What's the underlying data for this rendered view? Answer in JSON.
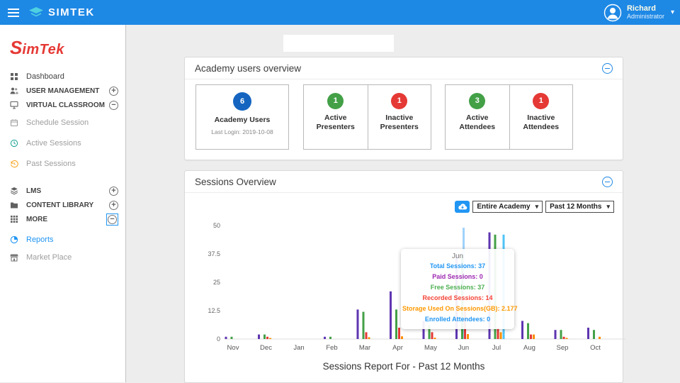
{
  "topbar": {
    "brand": "SIMTEK",
    "user_name": "Richard",
    "user_role": "Administrator"
  },
  "sidebar": {
    "logo_first": "S",
    "logo_rest": "imTek",
    "items": [
      {
        "label": "Dashboard"
      },
      {
        "label": "USER MANAGEMENT"
      },
      {
        "label": "VIRTUAL CLASSROOM"
      },
      {
        "label": "Schedule Session"
      },
      {
        "label": "Active Sessions"
      },
      {
        "label": "Past Sessions"
      },
      {
        "label": "LMS"
      },
      {
        "label": "CONTENT LIBRARY"
      },
      {
        "label": "MORE"
      },
      {
        "label": "Reports"
      },
      {
        "label": "Market Place"
      }
    ]
  },
  "academy_card": {
    "title": "Academy users overview",
    "stats": [
      {
        "value": "6",
        "color": "#1565c0",
        "label": "Academy Users",
        "sub": "Last Login: 2019-10-08"
      },
      {
        "value": "1",
        "color": "#43a047",
        "label": "Active Presenters"
      },
      {
        "value": "1",
        "color": "#e53935",
        "label": "Inactive Presenters"
      },
      {
        "value": "3",
        "color": "#43a047",
        "label": "Active Attendees"
      },
      {
        "value": "1",
        "color": "#e53935",
        "label": "Inactive Attendees"
      }
    ]
  },
  "sessions_card": {
    "title": "Sessions Overview",
    "academy_filter": "Entire Academy",
    "range_filter": "Past 12 Months",
    "caption": "Sessions Report For - Past 12 Months",
    "tooltip": {
      "title": "Jun",
      "lines": [
        {
          "text": "Total Sessions: 37",
          "color": "#2196f3"
        },
        {
          "text": "Paid Sessions: 0",
          "color": "#9c27b0"
        },
        {
          "text": "Free Sessions: 37",
          "color": "#4caf50"
        },
        {
          "text": "Recorded Sessions: 14",
          "color": "#f44336"
        },
        {
          "text": "Storage Used On Sessions(GB): 2.177",
          "color": "#ff9800"
        },
        {
          "text": "Enrolled Attendees: 0",
          "color": "#2196f3"
        }
      ]
    }
  },
  "chart_data": {
    "type": "bar",
    "title": "Sessions Report For - Past 12 Months",
    "categories": [
      "Nov",
      "Dec",
      "Jan",
      "Feb",
      "Mar",
      "Apr",
      "May",
      "Jun",
      "Jul",
      "Aug",
      "Sep",
      "Oct"
    ],
    "series": [
      {
        "name": "Total Sessions",
        "color": "#5e35b1",
        "values": [
          1,
          2,
          0,
          1,
          13,
          21,
          8,
          37,
          47,
          8,
          4,
          5
        ]
      },
      {
        "name": "Paid Sessions",
        "color": "#3f51b5",
        "values": [
          0,
          0,
          0,
          0,
          0,
          0,
          0,
          0,
          0,
          0,
          0,
          0
        ]
      },
      {
        "name": "Free Sessions",
        "color": "#43a047",
        "values": [
          1,
          2,
          0,
          1,
          12,
          13,
          6,
          37,
          46,
          7,
          4,
          4
        ]
      },
      {
        "name": "Recorded Sessions",
        "color": "#e53935",
        "values": [
          0,
          1,
          0,
          0,
          3,
          5,
          3,
          14,
          5,
          2,
          1,
          0
        ]
      },
      {
        "name": "Storage Used On Sessions(GB)",
        "color": "#fb8c00",
        "values": [
          0,
          0.3,
          0,
          0,
          0.8,
          1.2,
          0.6,
          2.177,
          3,
          2,
          0.5,
          1
        ]
      },
      {
        "name": "Enrolled Attendees",
        "color": "#4fc3f7",
        "values": [
          0,
          0,
          0,
          0,
          0,
          0,
          0,
          0,
          46,
          0,
          0,
          0
        ]
      }
    ],
    "ylim": [
      0,
      50
    ],
    "yticks": [
      0,
      12.5,
      25,
      37.5,
      50
    ],
    "hover_month": "Jun",
    "grid": "off",
    "legend_position": "none"
  }
}
